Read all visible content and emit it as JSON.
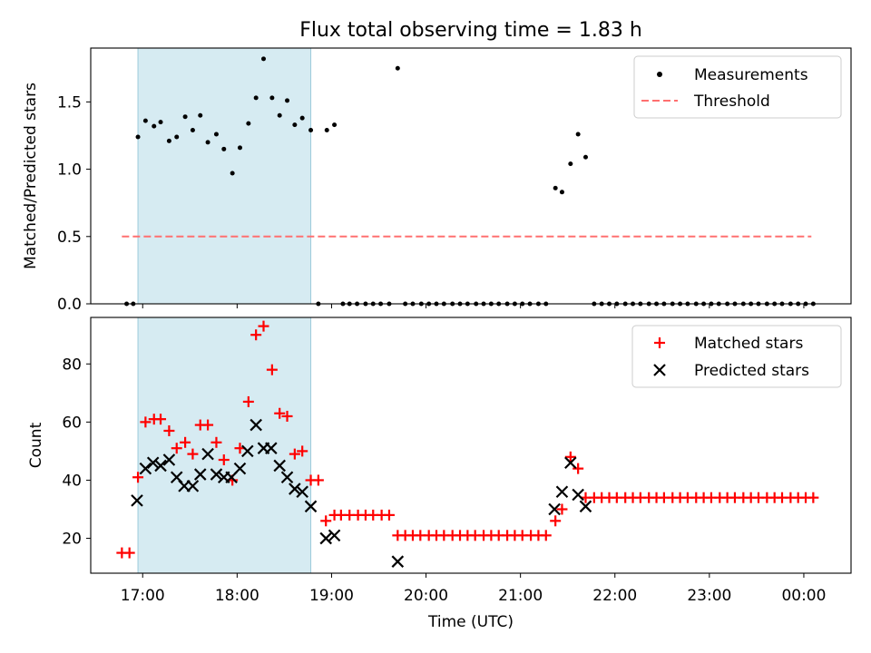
{
  "chart_data": {
    "type": "scatter",
    "title": "Flux total observing time = 1.83 h",
    "xlabel": "Time (UTC)",
    "x_units": "hours since 00:00 UTC (24+ = next day)",
    "xlim": [
      16.45,
      24.5
    ],
    "xticks": [
      17,
      18,
      19,
      20,
      21,
      22,
      23,
      24
    ],
    "xtick_labels": [
      "17:00",
      "18:00",
      "19:00",
      "20:00",
      "21:00",
      "22:00",
      "23:00",
      "00:00"
    ],
    "observing_window": [
      16.95,
      18.78
    ],
    "top_panel": {
      "ylabel": "Matched/Predicted stars",
      "ylim": [
        0,
        1.9
      ],
      "yticks": [
        0.0,
        0.5,
        1.0,
        1.5
      ],
      "ytick_labels": [
        "0.0",
        "0.5",
        "1.0",
        "1.5"
      ],
      "legend": {
        "position": "top-right",
        "entries": [
          "Measurements",
          "Threshold"
        ]
      },
      "threshold": {
        "value": 0.5,
        "x_range": [
          16.78,
          24.08
        ],
        "color": "#ff7070"
      },
      "measurements": [
        [
          16.83,
          0
        ],
        [
          16.9,
          0
        ],
        [
          16.95,
          1.24
        ],
        [
          17.03,
          1.36
        ],
        [
          17.12,
          1.32
        ],
        [
          17.19,
          1.35
        ],
        [
          17.28,
          1.21
        ],
        [
          17.36,
          1.24
        ],
        [
          17.45,
          1.39
        ],
        [
          17.53,
          1.29
        ],
        [
          17.61,
          1.4
        ],
        [
          17.69,
          1.2
        ],
        [
          17.78,
          1.26
        ],
        [
          17.86,
          1.15
        ],
        [
          17.95,
          0.97
        ],
        [
          18.03,
          1.16
        ],
        [
          18.12,
          1.34
        ],
        [
          18.2,
          1.53
        ],
        [
          18.28,
          1.82
        ],
        [
          18.37,
          1.53
        ],
        [
          18.45,
          1.4
        ],
        [
          18.53,
          1.51
        ],
        [
          18.61,
          1.33
        ],
        [
          18.69,
          1.38
        ],
        [
          18.78,
          1.29
        ],
        [
          18.86,
          0
        ],
        [
          18.95,
          1.29
        ],
        [
          19.03,
          1.33
        ],
        [
          19.12,
          0
        ],
        [
          19.19,
          0
        ],
        [
          19.27,
          0
        ],
        [
          19.36,
          0
        ],
        [
          19.44,
          0
        ],
        [
          19.52,
          0
        ],
        [
          19.61,
          0
        ],
        [
          19.7,
          1.75
        ],
        [
          19.78,
          0
        ],
        [
          19.86,
          0
        ],
        [
          19.95,
          0
        ],
        [
          20.03,
          0
        ],
        [
          20.11,
          0
        ],
        [
          20.19,
          0
        ],
        [
          20.28,
          0
        ],
        [
          20.36,
          0
        ],
        [
          20.44,
          0
        ],
        [
          20.53,
          0
        ],
        [
          20.61,
          0
        ],
        [
          20.69,
          0
        ],
        [
          20.77,
          0
        ],
        [
          20.86,
          0
        ],
        [
          20.94,
          0
        ],
        [
          21.02,
          0
        ],
        [
          21.1,
          0
        ],
        [
          21.19,
          0
        ],
        [
          21.27,
          0
        ],
        [
          21.37,
          0.86
        ],
        [
          21.44,
          0.83
        ],
        [
          21.53,
          1.04
        ],
        [
          21.61,
          1.26
        ],
        [
          21.69,
          1.09
        ],
        [
          21.78,
          0
        ],
        [
          21.86,
          0
        ],
        [
          21.94,
          0
        ],
        [
          22.02,
          0
        ],
        [
          22.11,
          0
        ],
        [
          22.19,
          0
        ],
        [
          22.27,
          0
        ],
        [
          22.36,
          0
        ],
        [
          22.44,
          0
        ],
        [
          22.52,
          0
        ],
        [
          22.61,
          0
        ],
        [
          22.69,
          0
        ],
        [
          22.77,
          0
        ],
        [
          22.86,
          0
        ],
        [
          22.94,
          0
        ],
        [
          23.02,
          0
        ],
        [
          23.1,
          0
        ],
        [
          23.19,
          0
        ],
        [
          23.27,
          0
        ],
        [
          23.36,
          0
        ],
        [
          23.44,
          0
        ],
        [
          23.52,
          0
        ],
        [
          23.61,
          0
        ],
        [
          23.69,
          0
        ],
        [
          23.77,
          0
        ],
        [
          23.86,
          0
        ],
        [
          23.94,
          0
        ],
        [
          24.02,
          0
        ],
        [
          24.1,
          0
        ]
      ]
    },
    "bottom_panel": {
      "ylabel": "Count",
      "ylim": [
        8,
        96
      ],
      "yticks": [
        20,
        40,
        60,
        80
      ],
      "ytick_labels": [
        "20",
        "40",
        "60",
        "80"
      ],
      "legend": {
        "position": "top-right",
        "entries": [
          "Matched stars",
          "Predicted stars"
        ]
      },
      "matched_color": "#ff0000",
      "predicted_color": "#000000",
      "matched": [
        [
          16.78,
          15
        ],
        [
          16.86,
          15
        ],
        [
          16.95,
          41
        ],
        [
          17.03,
          60
        ],
        [
          17.12,
          61
        ],
        [
          17.19,
          61
        ],
        [
          17.28,
          57
        ],
        [
          17.36,
          51
        ],
        [
          17.45,
          53
        ],
        [
          17.53,
          49
        ],
        [
          17.61,
          59
        ],
        [
          17.69,
          59
        ],
        [
          17.78,
          53
        ],
        [
          17.86,
          47
        ],
        [
          17.95,
          40
        ],
        [
          18.03,
          51
        ],
        [
          18.12,
          67
        ],
        [
          18.2,
          90
        ],
        [
          18.28,
          93
        ],
        [
          18.37,
          78
        ],
        [
          18.45,
          63
        ],
        [
          18.53,
          62
        ],
        [
          18.61,
          49
        ],
        [
          18.69,
          50
        ],
        [
          18.78,
          40
        ],
        [
          18.86,
          40
        ],
        [
          18.94,
          26
        ],
        [
          19.03,
          28
        ],
        [
          19.1,
          28
        ],
        [
          19.19,
          28
        ],
        [
          19.28,
          28
        ],
        [
          19.36,
          28
        ],
        [
          19.44,
          28
        ],
        [
          19.53,
          28
        ],
        [
          19.61,
          28
        ],
        [
          19.7,
          21
        ],
        [
          19.78,
          21
        ],
        [
          19.86,
          21
        ],
        [
          19.94,
          21
        ],
        [
          20.03,
          21
        ],
        [
          20.11,
          21
        ],
        [
          20.19,
          21
        ],
        [
          20.28,
          21
        ],
        [
          20.36,
          21
        ],
        [
          20.44,
          21
        ],
        [
          20.52,
          21
        ],
        [
          20.61,
          21
        ],
        [
          20.69,
          21
        ],
        [
          20.77,
          21
        ],
        [
          20.86,
          21
        ],
        [
          20.94,
          21
        ],
        [
          21.02,
          21
        ],
        [
          21.11,
          21
        ],
        [
          21.19,
          21
        ],
        [
          21.27,
          21
        ],
        [
          21.37,
          26
        ],
        [
          21.44,
          30
        ],
        [
          21.53,
          48
        ],
        [
          21.61,
          44
        ],
        [
          21.69,
          34
        ],
        [
          21.78,
          34
        ],
        [
          21.86,
          34
        ],
        [
          21.94,
          34
        ],
        [
          22.02,
          34
        ],
        [
          22.11,
          34
        ],
        [
          22.19,
          34
        ],
        [
          22.27,
          34
        ],
        [
          22.36,
          34
        ],
        [
          22.44,
          34
        ],
        [
          22.52,
          34
        ],
        [
          22.61,
          34
        ],
        [
          22.69,
          34
        ],
        [
          22.77,
          34
        ],
        [
          22.86,
          34
        ],
        [
          22.94,
          34
        ],
        [
          23.02,
          34
        ],
        [
          23.11,
          34
        ],
        [
          23.19,
          34
        ],
        [
          23.27,
          34
        ],
        [
          23.36,
          34
        ],
        [
          23.44,
          34
        ],
        [
          23.52,
          34
        ],
        [
          23.61,
          34
        ],
        [
          23.69,
          34
        ],
        [
          23.77,
          34
        ],
        [
          23.86,
          34
        ],
        [
          23.94,
          34
        ],
        [
          24.02,
          34
        ],
        [
          24.1,
          34
        ]
      ],
      "predicted": [
        [
          16.94,
          33
        ],
        [
          17.03,
          44
        ],
        [
          17.11,
          46
        ],
        [
          17.19,
          45
        ],
        [
          17.28,
          47
        ],
        [
          17.36,
          41
        ],
        [
          17.44,
          38
        ],
        [
          17.53,
          38
        ],
        [
          17.61,
          42
        ],
        [
          17.69,
          49
        ],
        [
          17.78,
          42
        ],
        [
          17.86,
          41
        ],
        [
          17.94,
          41
        ],
        [
          18.03,
          44
        ],
        [
          18.11,
          50
        ],
        [
          18.2,
          59
        ],
        [
          18.28,
          51
        ],
        [
          18.36,
          51
        ],
        [
          18.45,
          45
        ],
        [
          18.53,
          41
        ],
        [
          18.61,
          37
        ],
        [
          18.69,
          36
        ],
        [
          18.78,
          31
        ],
        [
          18.94,
          20
        ],
        [
          19.03,
          21
        ],
        [
          19.7,
          12
        ],
        [
          21.36,
          30
        ],
        [
          21.44,
          36
        ],
        [
          21.53,
          46
        ],
        [
          21.61,
          35
        ],
        [
          21.69,
          31
        ]
      ]
    }
  }
}
